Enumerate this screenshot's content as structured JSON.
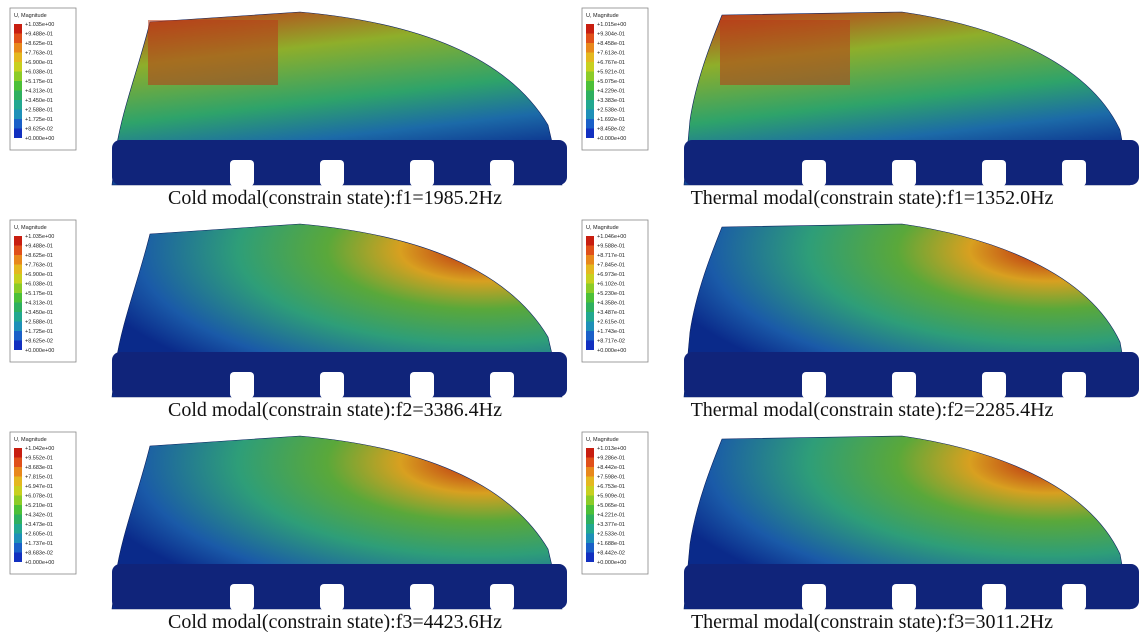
{
  "panels": [
    {
      "legend": {
        "title": "U, Magnitude",
        "values": [
          "+1.035e+00",
          "+9.488e-01",
          "+8.625e-01",
          "+7.763e-01",
          "+6.900e-01",
          "+6.038e-01",
          "+5.175e-01",
          "+4.313e-01",
          "+3.450e-01",
          "+2.588e-01",
          "+1.725e-01",
          "+8.625e-02",
          "+0.000e+00"
        ]
      },
      "caption": "Cold modal(constrain state):f1=1985.2Hz"
    },
    {
      "legend": {
        "title": "U, Magnitude",
        "values": [
          "+1.015e+00",
          "+9.304e-01",
          "+8.458e-01",
          "+7.613e-01",
          "+6.767e-01",
          "+5.921e-01",
          "+5.075e-01",
          "+4.229e-01",
          "+3.383e-01",
          "+2.538e-01",
          "+1.692e-01",
          "+8.458e-02",
          "+0.000e+00"
        ]
      },
      "caption": "Thermal modal(constrain state):f1=1352.0Hz"
    },
    {
      "legend": {
        "title": "U, Magnitude",
        "values": [
          "+1.035e+00",
          "+9.488e-01",
          "+8.625e-01",
          "+7.763e-01",
          "+6.900e-01",
          "+6.038e-01",
          "+5.175e-01",
          "+4.313e-01",
          "+3.450e-01",
          "+2.588e-01",
          "+1.725e-01",
          "+8.625e-02",
          "+0.000e+00"
        ]
      },
      "caption": "Cold modal(constrain state):f2=3386.4Hz"
    },
    {
      "legend": {
        "title": "U, Magnitude",
        "values": [
          "+1.046e+00",
          "+9.588e-01",
          "+8.717e-01",
          "+7.845e-01",
          "+6.973e-01",
          "+6.102e-01",
          "+5.230e-01",
          "+4.358e-01",
          "+3.487e-01",
          "+2.615e-01",
          "+1.743e-01",
          "+8.717e-02",
          "+0.000e+00"
        ]
      },
      "caption": "Thermal modal(constrain state):f2=2285.4Hz"
    },
    {
      "legend": {
        "title": "U, Magnitude",
        "values": [
          "+1.042e+00",
          "+9.552e-01",
          "+8.683e-01",
          "+7.815e-01",
          "+6.947e-01",
          "+6.078e-01",
          "+5.210e-01",
          "+4.342e-01",
          "+3.473e-01",
          "+2.605e-01",
          "+1.737e-01",
          "+8.683e-02",
          "+0.000e+00"
        ]
      },
      "caption": "Cold modal(constrain state):f3=4423.6Hz"
    },
    {
      "legend": {
        "title": "U, Magnitude",
        "values": [
          "+1.013e+00",
          "+9.286e-01",
          "+8.442e-01",
          "+7.598e-01",
          "+6.753e-01",
          "+5.909e-01",
          "+5.065e-01",
          "+4.221e-01",
          "+3.377e-01",
          "+2.533e-01",
          "+1.688e-01",
          "+8.442e-02",
          "+0.000e+00"
        ]
      },
      "caption": "Thermal modal(constrain state):f3=3011.2Hz"
    }
  ]
}
